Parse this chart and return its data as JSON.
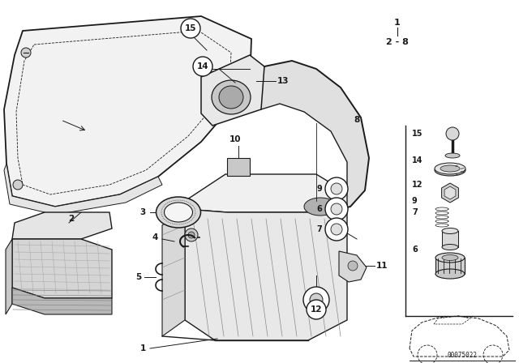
{
  "bg_color": "#ffffff",
  "line_color": "#1a1a1a",
  "fig_width": 6.4,
  "fig_height": 4.48,
  "dpi": 100,
  "code_text": "00075022",
  "header_1": "1",
  "header_2": "2 - 8"
}
